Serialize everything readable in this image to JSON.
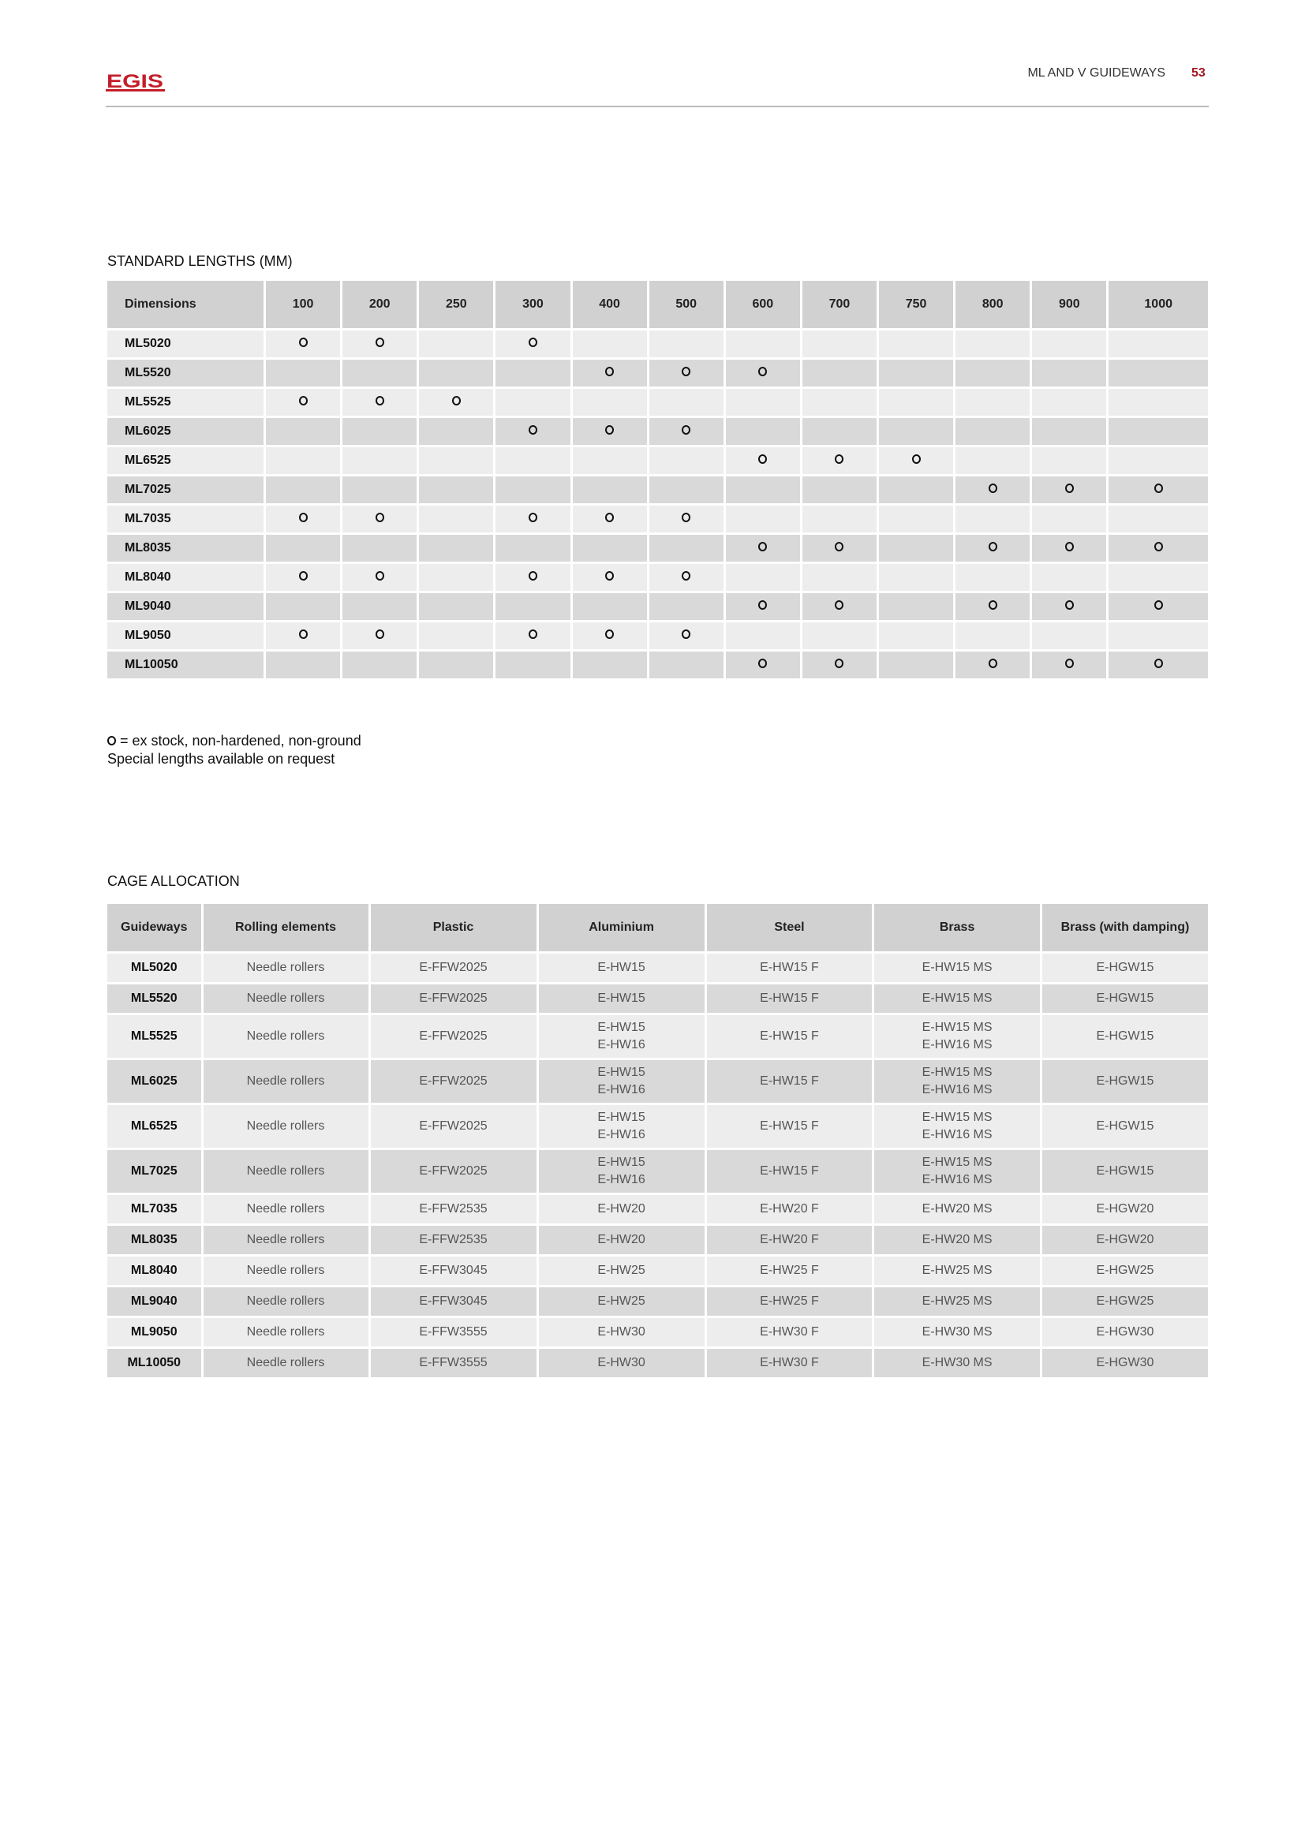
{
  "header": {
    "logo_text": "EGIS",
    "title": "ML AND V GUIDEWAYS",
    "page": "53",
    "brand_color": "#c41e2a"
  },
  "standard_lengths": {
    "title": "STANDARD LENGTHS  (MM)",
    "columns": [
      "Dimensions",
      "100",
      "200",
      "250",
      "300",
      "400",
      "500",
      "600",
      "700",
      "750",
      "800",
      "900",
      "1000"
    ],
    "rows": [
      {
        "name": "ML5020",
        "available": [
          "100",
          "200",
          "300"
        ]
      },
      {
        "name": "ML5520",
        "available": [
          "400",
          "500",
          "600"
        ]
      },
      {
        "name": "ML5525",
        "available": [
          "100",
          "200",
          "250"
        ]
      },
      {
        "name": "ML6025",
        "available": [
          "300",
          "400",
          "500"
        ]
      },
      {
        "name": "ML6525",
        "available": [
          "600",
          "700",
          "750"
        ]
      },
      {
        "name": "ML7025",
        "available": [
          "800",
          "900",
          "1000"
        ]
      },
      {
        "name": "ML7035",
        "available": [
          "100",
          "200",
          "300",
          "400",
          "500"
        ]
      },
      {
        "name": "ML8035",
        "available": [
          "600",
          "700",
          "800",
          "900",
          "1000"
        ]
      },
      {
        "name": "ML8040",
        "available": [
          "100",
          "200",
          "300",
          "400",
          "500"
        ]
      },
      {
        "name": "ML9040",
        "available": [
          "600",
          "700",
          "800",
          "900",
          "1000"
        ]
      },
      {
        "name": "ML9050",
        "available": [
          "100",
          "200",
          "300",
          "400",
          "500"
        ]
      },
      {
        "name": "ML10050",
        "available": [
          "600",
          "700",
          "800",
          "900",
          "1000"
        ]
      }
    ]
  },
  "legend": {
    "line1": " = ex stock, non-hardened, non-ground",
    "line2": "Special lengths available on request"
  },
  "cage_allocation": {
    "title": "CAGE ALLOCATION",
    "columns": [
      "Guideways",
      "Rolling elements",
      "Plastic",
      "Aluminium",
      "Steel",
      "Brass",
      "Brass (with damping)"
    ],
    "rows": [
      [
        "ML5020",
        "Needle rollers",
        "E-FFW2025",
        "E-HW15",
        "E-HW15 F",
        "E-HW15 MS",
        "E-HGW15"
      ],
      [
        "ML5520",
        "Needle rollers",
        "E-FFW2025",
        "E-HW15",
        "E-HW15 F",
        "E-HW15 MS",
        "E-HGW15"
      ],
      [
        "ML5525",
        "Needle rollers",
        "E-FFW2025",
        "E-HW15\nE-HW16",
        "E-HW15 F",
        "E-HW15 MS\nE-HW16 MS",
        "E-HGW15"
      ],
      [
        "ML6025",
        "Needle rollers",
        "E-FFW2025",
        "E-HW15\nE-HW16",
        "E-HW15 F",
        "E-HW15 MS\nE-HW16 MS",
        "E-HGW15"
      ],
      [
        "ML6525",
        "Needle rollers",
        "E-FFW2025",
        "E-HW15\nE-HW16",
        "E-HW15 F",
        "E-HW15 MS\nE-HW16 MS",
        "E-HGW15"
      ],
      [
        "ML7025",
        "Needle rollers",
        "E-FFW2025",
        "E-HW15\nE-HW16",
        "E-HW15 F",
        "E-HW15 MS\nE-HW16 MS",
        "E-HGW15"
      ],
      [
        "ML7035",
        "Needle rollers",
        "E-FFW2535",
        "E-HW20",
        "E-HW20 F",
        "E-HW20 MS",
        "E-HGW20"
      ],
      [
        "ML8035",
        "Needle rollers",
        "E-FFW2535",
        "E-HW20",
        "E-HW20 F",
        "E-HW20 MS",
        "E-HGW20"
      ],
      [
        "ML8040",
        "Needle rollers",
        "E-FFW3045",
        "E-HW25",
        "E-HW25 F",
        "E-HW25 MS",
        "E-HGW25"
      ],
      [
        "ML9040",
        "Needle rollers",
        "E-FFW3045",
        "E-HW25",
        "E-HW25 F",
        "E-HW25 MS",
        "E-HGW25"
      ],
      [
        "ML9050",
        "Needle rollers",
        "E-FFW3555",
        "E-HW30",
        "E-HW30 F",
        "E-HW30 MS",
        "E-HGW30"
      ],
      [
        "ML10050",
        "Needle rollers",
        "E-FFW3555",
        "E-HW30",
        "E-HW30 F",
        "E-HW30 MS",
        "E-HGW30"
      ]
    ]
  }
}
